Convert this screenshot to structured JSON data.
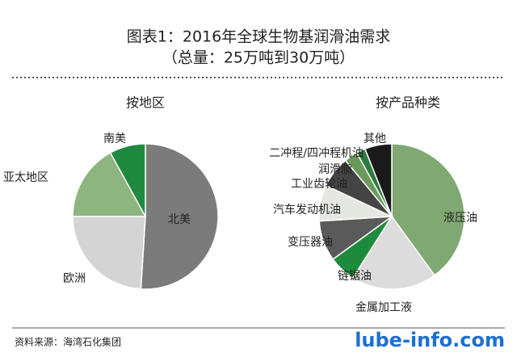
{
  "title": "图表1：2016年全球生物基润滑油需求",
  "subtitle": "（总量：25万吨到30万吨）",
  "source": "资料来源：海湾石化集团",
  "watermark": "lube-info.com",
  "chart_data": [
    {
      "type": "pie",
      "title": "按地区",
      "categories": [
        "北美",
        "欧洲",
        "亚太地区",
        "南美"
      ],
      "values": [
        51,
        24,
        17,
        8
      ],
      "colors": [
        "#7b7b7b",
        "#d4d4d4",
        "#8db580",
        "#1f8a3f"
      ]
    },
    {
      "type": "pie",
      "title": "按产品种类",
      "categories": [
        "液压油",
        "金属加工液",
        "链锯油",
        "变压器油",
        "汽车发动机油",
        "工业齿轮油",
        "润滑脂",
        "二冲程/四冲程机油",
        "其他"
      ],
      "values": [
        40,
        19,
        6,
        9,
        8,
        7,
        3,
        2,
        6
      ],
      "colors": [
        "#80a872",
        "#dcdcdc",
        "#1e8a3c",
        "#5a5a5a",
        "#e4e8e0",
        "#444444",
        "#6a9a5a",
        "#2d7a3d",
        "#1a1a1a"
      ]
    }
  ]
}
